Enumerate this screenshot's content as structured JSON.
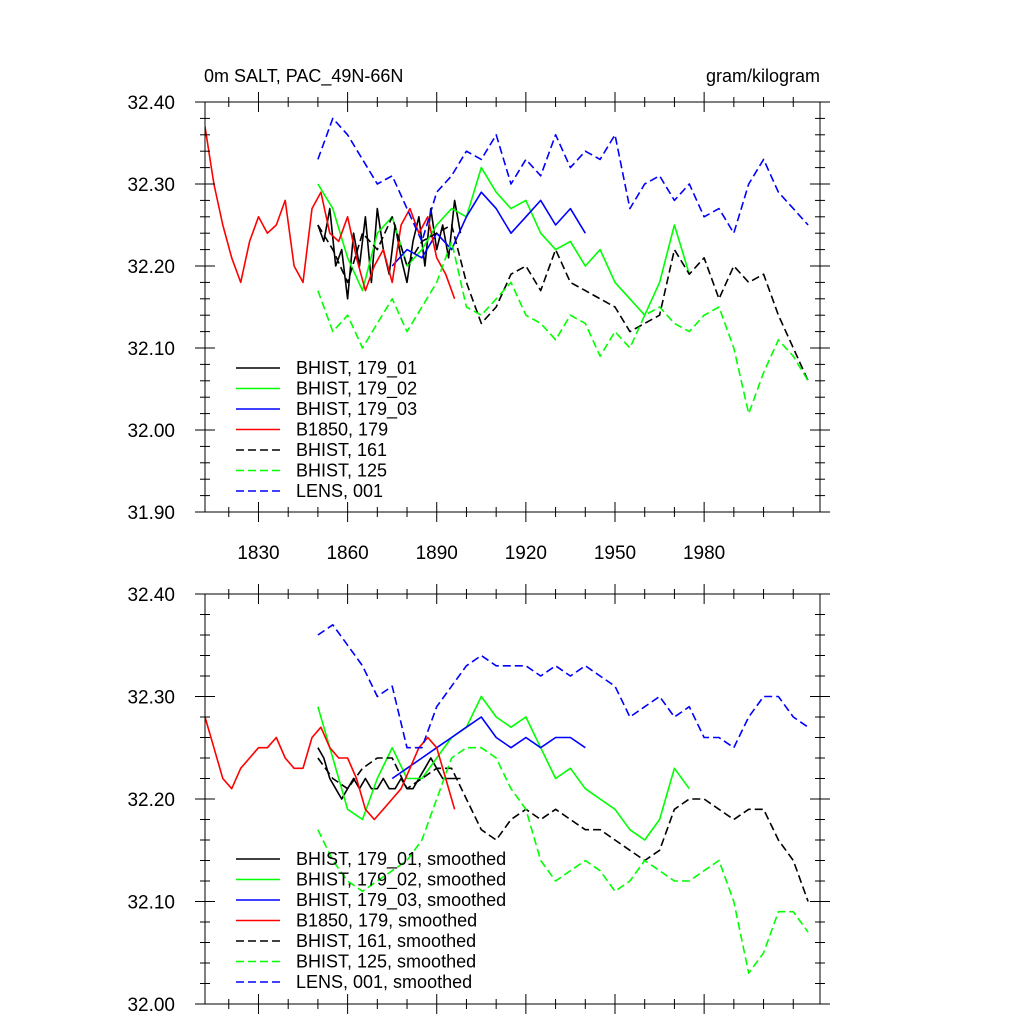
{
  "chart_data": [
    {
      "type": "line",
      "title": "0m SALT, PAC_49N-66N",
      "title_right": "gram/kilogram",
      "xlabel": "",
      "ylabel": "",
      "xlim": [
        1812,
        2019
      ],
      "ylim": [
        31.9,
        32.4
      ],
      "xticks": [
        1830,
        1860,
        1890,
        1920,
        1950,
        1980
      ],
      "xtick_labels": [
        "1830",
        "1860",
        "1890",
        "1920",
        "1950",
        "1980"
      ],
      "yticks": [
        31.9,
        32.0,
        32.1,
        32.2,
        32.3,
        32.4
      ],
      "ytick_labels": [
        "31.90",
        "32.00",
        "32.10",
        "32.20",
        "32.30",
        "32.40"
      ],
      "legend_position": "bottom-left",
      "series": [
        {
          "name": "BHIST, 179_01",
          "color": "#000000",
          "dash": "solid",
          "x": [
            1850,
            1852,
            1854,
            1856,
            1858,
            1860,
            1862,
            1864,
            1866,
            1868,
            1870,
            1872,
            1874,
            1876,
            1878,
            1880,
            1882,
            1884,
            1886,
            1888,
            1890,
            1892,
            1894,
            1896,
            1898
          ],
          "values": [
            32.25,
            32.23,
            32.27,
            32.2,
            32.22,
            32.16,
            32.24,
            32.2,
            32.26,
            32.18,
            32.27,
            32.22,
            32.19,
            32.25,
            32.21,
            32.18,
            32.23,
            32.26,
            32.2,
            32.27,
            32.22,
            32.25,
            32.21,
            32.28,
            32.24
          ]
        },
        {
          "name": "BHIST, 179_02",
          "color": "#00ff00",
          "dash": "solid",
          "x": [
            1850,
            1855,
            1860,
            1865,
            1870,
            1875,
            1880,
            1885,
            1890,
            1895,
            1900,
            1905,
            1910,
            1915,
            1920,
            1925,
            1930,
            1935,
            1940,
            1945,
            1950,
            1955,
            1960,
            1965,
            1970,
            1975
          ],
          "values": [
            32.3,
            32.27,
            32.21,
            32.17,
            32.24,
            32.26,
            32.2,
            32.22,
            32.25,
            32.27,
            32.26,
            32.32,
            32.29,
            32.27,
            32.28,
            32.24,
            32.22,
            32.23,
            32.2,
            32.22,
            32.18,
            32.16,
            32.14,
            32.18,
            32.25,
            32.19
          ]
        },
        {
          "name": "BHIST, 179_03",
          "color": "#0000ff",
          "dash": "solid",
          "x": [
            1875,
            1880,
            1885,
            1890,
            1895,
            1900,
            1905,
            1910,
            1915,
            1920,
            1925,
            1930,
            1935,
            1940
          ],
          "values": [
            32.2,
            32.22,
            32.21,
            32.24,
            32.22,
            32.26,
            32.29,
            32.27,
            32.24,
            32.26,
            32.28,
            32.25,
            32.27,
            32.24
          ]
        },
        {
          "name": "B1850, 179",
          "color": "#ff0000",
          "dash": "solid",
          "x": [
            1812,
            1815,
            1818,
            1821,
            1824,
            1827,
            1830,
            1833,
            1836,
            1839,
            1842,
            1845,
            1848,
            1851,
            1854,
            1857,
            1860,
            1863,
            1866,
            1869,
            1872,
            1875,
            1878,
            1881,
            1884,
            1887,
            1890,
            1893,
            1896
          ],
          "values": [
            32.37,
            32.3,
            32.25,
            32.21,
            32.18,
            32.23,
            32.26,
            32.24,
            32.25,
            32.28,
            32.2,
            32.18,
            32.27,
            32.29,
            32.24,
            32.23,
            32.26,
            32.21,
            32.17,
            32.2,
            32.22,
            32.18,
            32.25,
            32.27,
            32.24,
            32.26,
            32.21,
            32.19,
            32.16
          ]
        },
        {
          "name": "BHIST, 161",
          "color": "#000000",
          "dash": "dashed",
          "x": [
            1850,
            1855,
            1860,
            1865,
            1870,
            1875,
            1880,
            1885,
            1890,
            1895,
            1900,
            1905,
            1910,
            1915,
            1920,
            1925,
            1930,
            1935,
            1940,
            1945,
            1950,
            1955,
            1960,
            1965,
            1970,
            1975,
            1980,
            1985,
            1990,
            1995,
            2000,
            2005,
            2010,
            2015
          ],
          "values": [
            32.25,
            32.22,
            32.18,
            32.24,
            32.22,
            32.26,
            32.2,
            32.23,
            32.24,
            32.25,
            32.18,
            32.13,
            32.15,
            32.19,
            32.2,
            32.17,
            32.22,
            32.18,
            32.17,
            32.16,
            32.15,
            32.12,
            32.13,
            32.14,
            32.22,
            32.19,
            32.21,
            32.16,
            32.2,
            32.18,
            32.19,
            32.14,
            32.1,
            32.06
          ]
        },
        {
          "name": "BHIST, 125",
          "color": "#00ff00",
          "dash": "dashed",
          "x": [
            1850,
            1855,
            1860,
            1865,
            1870,
            1875,
            1880,
            1885,
            1890,
            1895,
            1900,
            1905,
            1910,
            1915,
            1920,
            1925,
            1930,
            1935,
            1940,
            1945,
            1950,
            1955,
            1960,
            1965,
            1970,
            1975,
            1980,
            1985,
            1990,
            1995,
            2000,
            2005,
            2010,
            2015
          ],
          "values": [
            32.17,
            32.12,
            32.14,
            32.1,
            32.13,
            32.16,
            32.12,
            32.15,
            32.18,
            32.23,
            32.15,
            32.14,
            32.16,
            32.18,
            32.14,
            32.13,
            32.11,
            32.14,
            32.13,
            32.09,
            32.12,
            32.1,
            32.14,
            32.15,
            32.13,
            32.12,
            32.14,
            32.15,
            32.1,
            32.02,
            32.07,
            32.11,
            32.09,
            32.06
          ]
        },
        {
          "name": "LENS, 001",
          "color": "#0000ff",
          "dash": "dashed",
          "x": [
            1850,
            1855,
            1860,
            1865,
            1870,
            1875,
            1880,
            1885,
            1890,
            1895,
            1900,
            1905,
            1910,
            1915,
            1920,
            1925,
            1930,
            1935,
            1940,
            1945,
            1950,
            1955,
            1960,
            1965,
            1970,
            1975,
            1980,
            1985,
            1990,
            1995,
            2000,
            2005,
            2010,
            2015
          ],
          "values": [
            32.33,
            32.38,
            32.36,
            32.33,
            32.3,
            32.31,
            32.27,
            32.23,
            32.29,
            32.31,
            32.34,
            32.33,
            32.36,
            32.3,
            32.33,
            32.31,
            32.36,
            32.32,
            32.34,
            32.33,
            32.36,
            32.27,
            32.3,
            32.31,
            32.28,
            32.3,
            32.26,
            32.27,
            32.24,
            32.3,
            32.33,
            32.29,
            32.27,
            32.25
          ]
        }
      ]
    },
    {
      "type": "line",
      "title": "",
      "xlabel": "",
      "ylabel": "",
      "xlim": [
        1812,
        2019
      ],
      "ylim": [
        32.0,
        32.4
      ],
      "xticks": [
        1830,
        1860,
        1890,
        1920,
        1950,
        1980
      ],
      "yticks": [
        32.0,
        32.1,
        32.2,
        32.3,
        32.4
      ],
      "ytick_labels": [
        "32.00",
        "32.10",
        "32.20",
        "32.30",
        "32.40"
      ],
      "legend_position": "bottom-left",
      "series": [
        {
          "name": "BHIST, 179_01, smoothed",
          "color": "#000000",
          "dash": "solid",
          "x": [
            1850,
            1852,
            1854,
            1856,
            1858,
            1860,
            1862,
            1864,
            1866,
            1868,
            1870,
            1872,
            1874,
            1876,
            1878,
            1880,
            1882,
            1884,
            1886,
            1888,
            1890,
            1892,
            1894,
            1896,
            1898
          ],
          "values": [
            32.25,
            32.24,
            32.22,
            32.21,
            32.2,
            32.21,
            32.22,
            32.21,
            32.22,
            32.21,
            32.21,
            32.22,
            32.21,
            32.21,
            32.22,
            32.21,
            32.21,
            32.22,
            32.23,
            32.24,
            32.23,
            32.22,
            32.22,
            32.22,
            32.22
          ]
        },
        {
          "name": "BHIST, 179_02, smoothed",
          "color": "#00ff00",
          "dash": "solid",
          "x": [
            1850,
            1855,
            1860,
            1865,
            1870,
            1875,
            1880,
            1885,
            1890,
            1895,
            1900,
            1905,
            1910,
            1915,
            1920,
            1925,
            1930,
            1935,
            1940,
            1945,
            1950,
            1955,
            1960,
            1965,
            1970,
            1975
          ],
          "values": [
            32.29,
            32.24,
            32.19,
            32.18,
            32.22,
            32.25,
            32.22,
            32.22,
            32.24,
            32.26,
            32.27,
            32.3,
            32.28,
            32.27,
            32.28,
            32.25,
            32.22,
            32.23,
            32.21,
            32.2,
            32.19,
            32.17,
            32.16,
            32.18,
            32.23,
            32.21
          ]
        },
        {
          "name": "BHIST, 179_03, smoothed",
          "color": "#0000ff",
          "dash": "solid",
          "x": [
            1875,
            1880,
            1885,
            1890,
            1895,
            1900,
            1905,
            1910,
            1915,
            1920,
            1925,
            1930,
            1935,
            1940
          ],
          "values": [
            32.22,
            32.23,
            32.24,
            32.25,
            32.26,
            32.27,
            32.28,
            32.26,
            32.25,
            32.26,
            32.25,
            32.26,
            32.26,
            32.25
          ]
        },
        {
          "name": "B1850, 179, smoothed",
          "color": "#ff0000",
          "dash": "solid",
          "x": [
            1812,
            1815,
            1818,
            1821,
            1824,
            1827,
            1830,
            1833,
            1836,
            1839,
            1842,
            1845,
            1848,
            1851,
            1854,
            1857,
            1860,
            1863,
            1866,
            1869,
            1872,
            1875,
            1878,
            1881,
            1884,
            1887,
            1890,
            1893,
            1896
          ],
          "values": [
            32.28,
            32.25,
            32.22,
            32.21,
            32.23,
            32.24,
            32.25,
            32.25,
            32.26,
            32.24,
            32.23,
            32.23,
            32.26,
            32.27,
            32.25,
            32.24,
            32.24,
            32.22,
            32.19,
            32.18,
            32.19,
            32.2,
            32.21,
            32.23,
            32.25,
            32.26,
            32.25,
            32.22,
            32.19
          ]
        },
        {
          "name": "BHIST, 161, smoothed",
          "color": "#000000",
          "dash": "dashed",
          "x": [
            1850,
            1855,
            1860,
            1865,
            1870,
            1875,
            1880,
            1885,
            1890,
            1895,
            1900,
            1905,
            1910,
            1915,
            1920,
            1925,
            1930,
            1935,
            1940,
            1945,
            1950,
            1955,
            1960,
            1965,
            1970,
            1975,
            1980,
            1985,
            1990,
            1995,
            2000,
            2005,
            2010,
            2015
          ],
          "values": [
            32.24,
            32.22,
            32.21,
            32.23,
            32.24,
            32.24,
            32.21,
            32.22,
            32.23,
            32.23,
            32.2,
            32.17,
            32.16,
            32.18,
            32.19,
            32.18,
            32.19,
            32.18,
            32.17,
            32.17,
            32.16,
            32.15,
            32.14,
            32.15,
            32.19,
            32.2,
            32.2,
            32.19,
            32.18,
            32.19,
            32.19,
            32.16,
            32.14,
            32.1
          ]
        },
        {
          "name": "BHIST, 125, smoothed",
          "color": "#00ff00",
          "dash": "dashed",
          "x": [
            1850,
            1855,
            1860,
            1865,
            1870,
            1875,
            1880,
            1885,
            1890,
            1895,
            1900,
            1905,
            1910,
            1915,
            1920,
            1925,
            1930,
            1935,
            1940,
            1945,
            1950,
            1955,
            1960,
            1965,
            1970,
            1975,
            1980,
            1985,
            1990,
            1995,
            2000,
            2005,
            2010,
            2015
          ],
          "values": [
            32.17,
            32.14,
            32.12,
            32.11,
            32.12,
            32.13,
            32.14,
            32.16,
            32.2,
            32.24,
            32.25,
            32.25,
            32.24,
            32.21,
            32.19,
            32.14,
            32.12,
            32.13,
            32.14,
            32.13,
            32.11,
            32.12,
            32.14,
            32.13,
            32.12,
            32.12,
            32.13,
            32.14,
            32.1,
            32.03,
            32.05,
            32.09,
            32.09,
            32.07
          ]
        },
        {
          "name": "LENS, 001, smoothed",
          "color": "#0000ff",
          "dash": "dashed",
          "x": [
            1850,
            1855,
            1860,
            1865,
            1870,
            1875,
            1880,
            1885,
            1890,
            1895,
            1900,
            1905,
            1910,
            1915,
            1920,
            1925,
            1930,
            1935,
            1940,
            1945,
            1950,
            1955,
            1960,
            1965,
            1970,
            1975,
            1980,
            1985,
            1990,
            1995,
            2000,
            2005,
            2010,
            2015
          ],
          "values": [
            32.36,
            32.37,
            32.35,
            32.33,
            32.3,
            32.31,
            32.25,
            32.25,
            32.29,
            32.31,
            32.33,
            32.34,
            32.33,
            32.33,
            32.33,
            32.32,
            32.33,
            32.32,
            32.33,
            32.32,
            32.31,
            32.28,
            32.29,
            32.3,
            32.28,
            32.29,
            32.26,
            32.26,
            32.25,
            32.28,
            32.3,
            32.3,
            32.28,
            32.27
          ]
        }
      ]
    }
  ]
}
